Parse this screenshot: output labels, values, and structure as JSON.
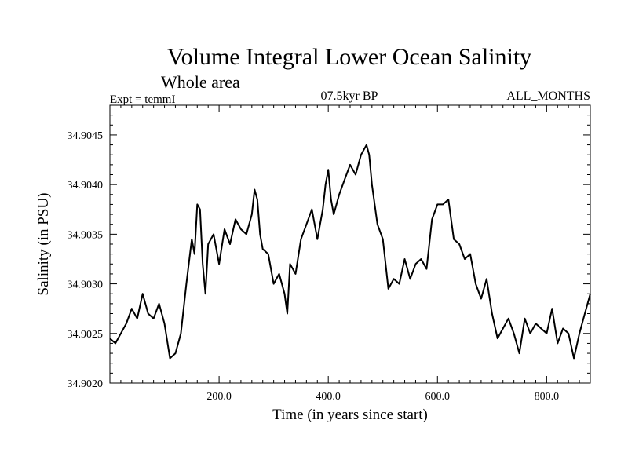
{
  "chart_data": {
    "type": "line",
    "title": "Volume Integral Lower Ocean Salinity",
    "subtitle": "Whole area",
    "expt_label": "Expt = temmI",
    "period_label": "07.5kyr BP",
    "months_label": "ALL_MONTHS",
    "xlabel": "Time (in years since start)",
    "ylabel": "Salinity (in PSU)",
    "xlim": [
      0,
      880
    ],
    "ylim": [
      34.902,
      34.9048
    ],
    "xticks": [
      200,
      400,
      600,
      800
    ],
    "xtick_labels": [
      "200.0",
      "400.0",
      "600.0",
      "800.0"
    ],
    "yticks": [
      34.902,
      34.9025,
      34.903,
      34.9035,
      34.904,
      34.9045
    ],
    "ytick_labels": [
      "34.9020",
      "34.9025",
      "34.9030",
      "34.9035",
      "34.9040",
      "34.9045"
    ],
    "grid": false,
    "series": [
      {
        "name": "Salinity",
        "x": [
          0,
          10,
          20,
          30,
          40,
          50,
          60,
          70,
          80,
          90,
          100,
          110,
          120,
          130,
          140,
          150,
          155,
          160,
          165,
          170,
          175,
          180,
          190,
          200,
          210,
          220,
          230,
          240,
          250,
          260,
          265,
          270,
          275,
          280,
          290,
          300,
          310,
          320,
          325,
          330,
          340,
          350,
          360,
          370,
          380,
          390,
          395,
          400,
          405,
          410,
          420,
          430,
          440,
          450,
          460,
          470,
          475,
          480,
          490,
          500,
          510,
          520,
          530,
          540,
          550,
          560,
          570,
          580,
          590,
          600,
          610,
          620,
          630,
          640,
          650,
          660,
          670,
          680,
          690,
          700,
          710,
          720,
          730,
          740,
          750,
          760,
          770,
          780,
          790,
          800,
          810,
          820,
          830,
          840,
          850,
          860,
          870,
          880
        ],
        "values": [
          34.90245,
          34.9024,
          34.9025,
          34.9026,
          34.90275,
          34.90265,
          34.9029,
          34.9027,
          34.90265,
          34.9028,
          34.9026,
          34.90225,
          34.9023,
          34.9025,
          34.903,
          34.90345,
          34.9033,
          34.9038,
          34.90375,
          34.9032,
          34.9029,
          34.9034,
          34.9035,
          34.9032,
          34.90355,
          34.9034,
          34.90365,
          34.90355,
          34.9035,
          34.9037,
          34.90395,
          34.90385,
          34.9035,
          34.90335,
          34.9033,
          34.903,
          34.9031,
          34.9029,
          34.9027,
          34.9032,
          34.9031,
          34.90345,
          34.9036,
          34.90375,
          34.90345,
          34.90375,
          34.904,
          34.90415,
          34.90385,
          34.9037,
          34.9039,
          34.90405,
          34.9042,
          34.9041,
          34.9043,
          34.9044,
          34.9043,
          34.904,
          34.9036,
          34.90345,
          34.90295,
          34.90305,
          34.903,
          34.90325,
          34.90305,
          34.9032,
          34.90325,
          34.90315,
          34.90365,
          34.9038,
          34.9038,
          34.90385,
          34.90345,
          34.9034,
          34.90325,
          34.9033,
          34.903,
          34.90285,
          34.90305,
          34.9027,
          34.90245,
          34.90255,
          34.90265,
          34.9025,
          34.9023,
          34.90265,
          34.9025,
          34.9026,
          34.90255,
          34.9025,
          34.90275,
          34.9024,
          34.90255,
          34.9025,
          34.90225,
          34.9025,
          34.9027,
          34.9029
        ]
      }
    ]
  }
}
